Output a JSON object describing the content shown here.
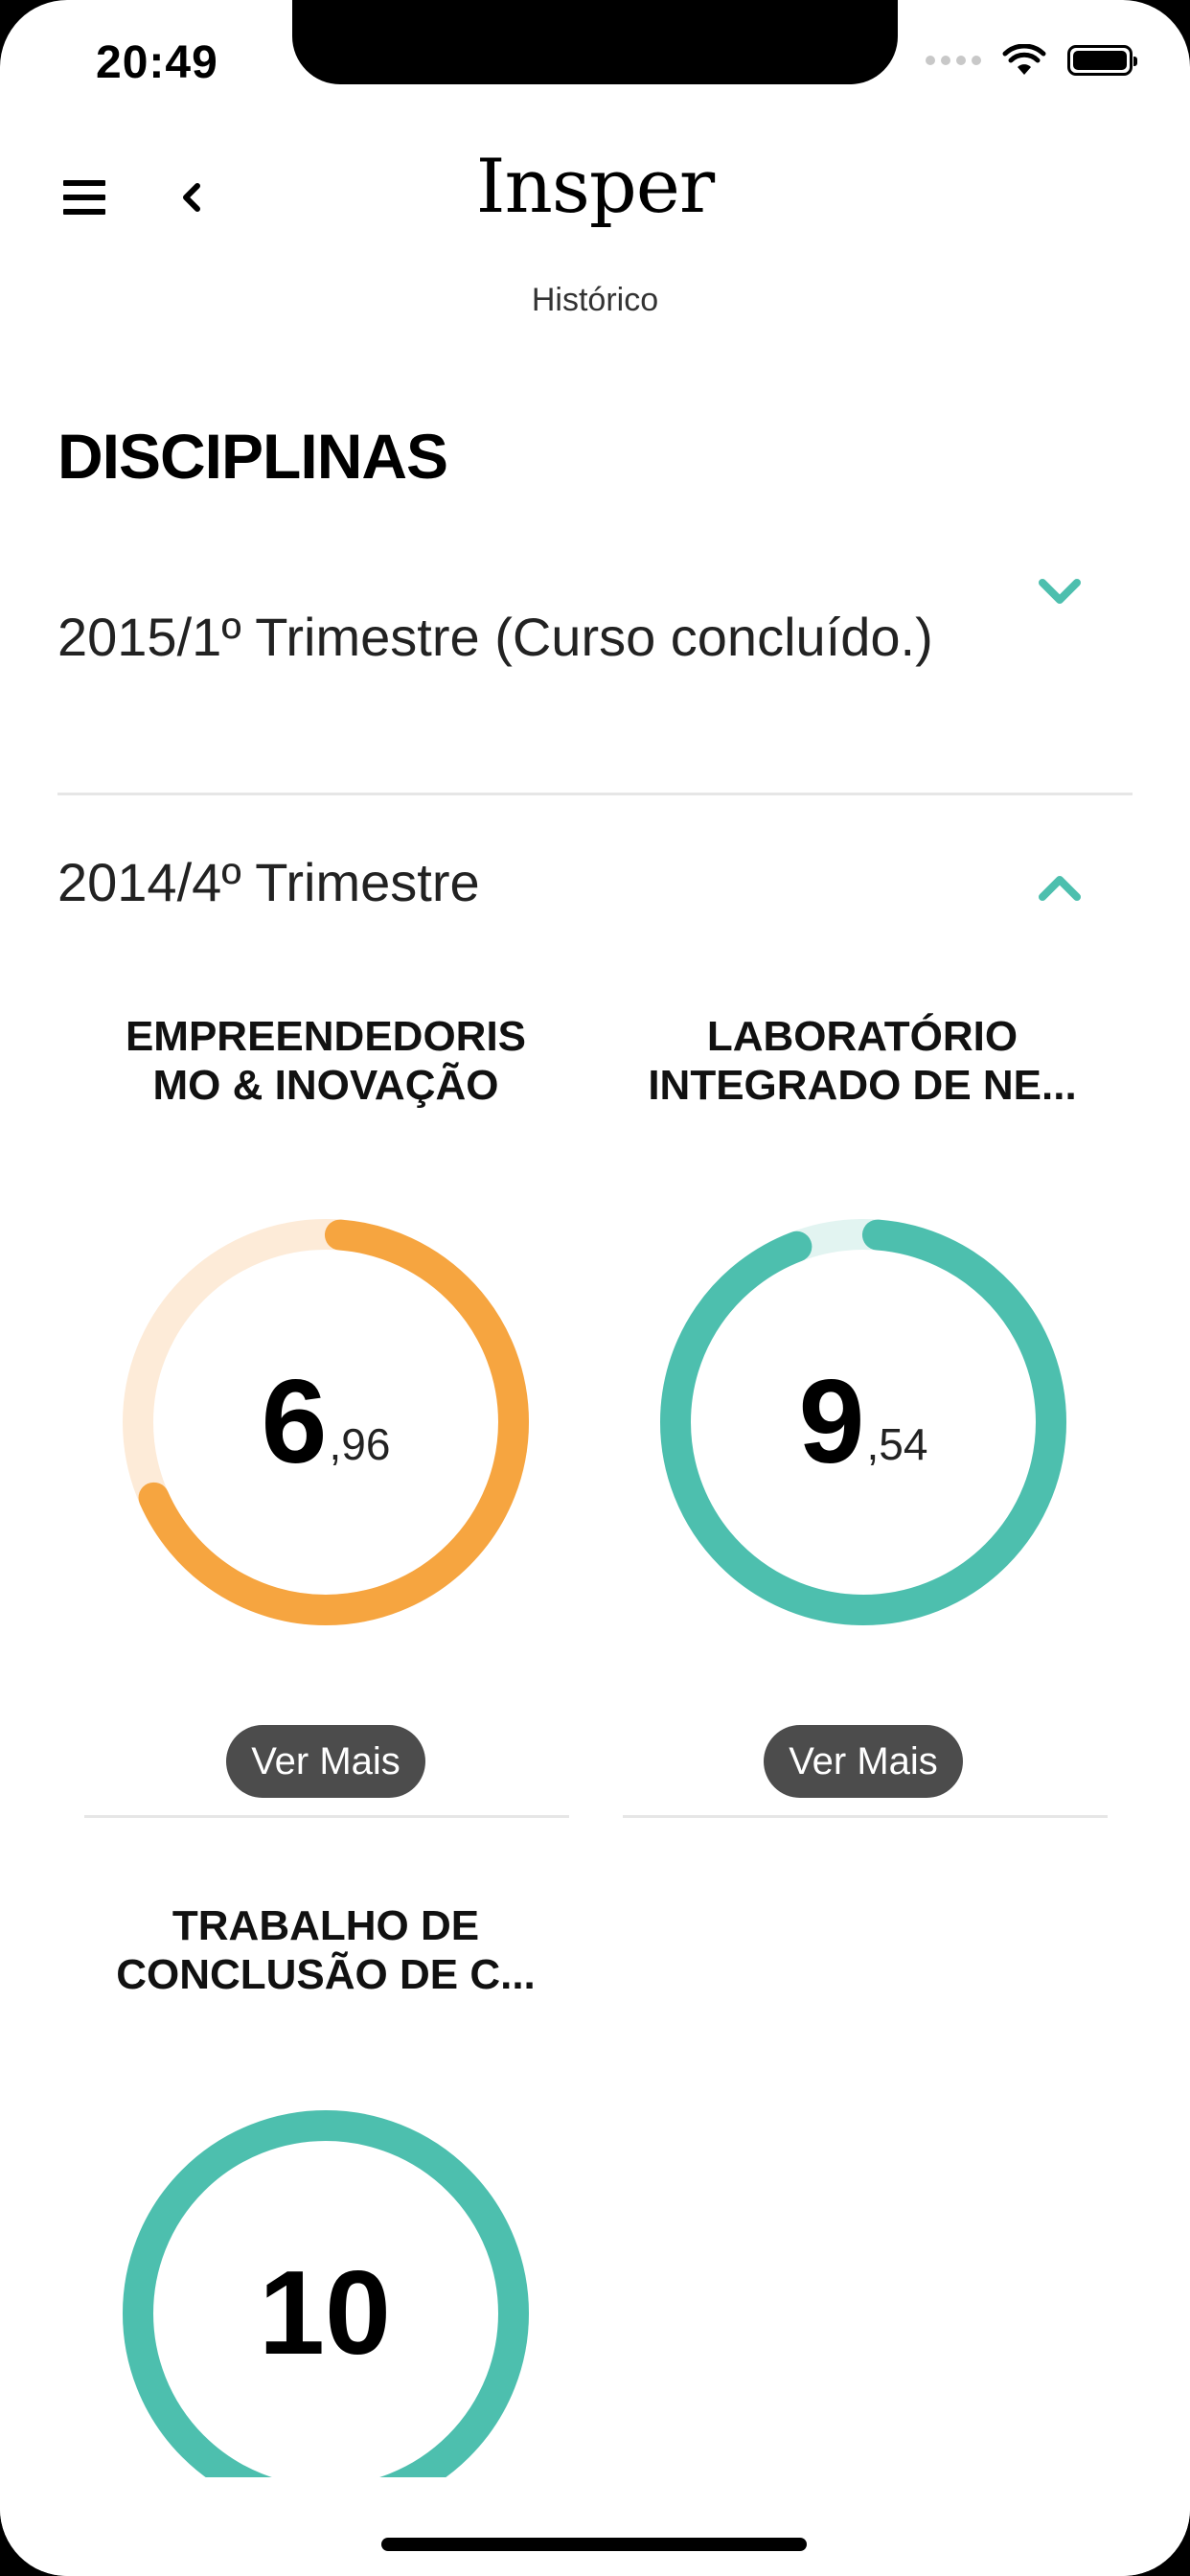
{
  "status_bar": {
    "time": "20:49"
  },
  "header": {
    "logo": "Insper",
    "subtitle": "Histórico"
  },
  "page_title": "DISCIPLINAS",
  "terms": [
    {
      "label": "2015/1º Trimestre (Curso concluído.)",
      "expanded": false
    },
    {
      "label": "2014/4º Trimestre",
      "expanded": true
    }
  ],
  "courses": [
    {
      "title_line1": "EMPREENDEDORIS",
      "title_line2": "MO & INOVAÇÃO",
      "grade_int": "6",
      "grade_dec": ",96",
      "grade_value": 6.96,
      "color": "#F6A540",
      "track_color": "#FDEBD8",
      "button": "Ver Mais"
    },
    {
      "title_line1": "LABORATÓRIO",
      "title_line2": "INTEGRADO DE NE...",
      "grade_int": "9",
      "grade_dec": ",54",
      "grade_value": 9.54,
      "color": "#4DBFAE",
      "track_color": "#E2F4F1",
      "button": "Ver Mais"
    },
    {
      "title_line1": "TRABALHO DE",
      "title_line2": "CONCLUSÃO DE C...",
      "grade_int": "10",
      "grade_dec": "",
      "grade_value": 10,
      "color": "#4DBFAE",
      "track_color": "#E2F4F1"
    }
  ],
  "colors": {
    "accent": "#4DBFAE",
    "button_bg": "#4C4C4C"
  }
}
